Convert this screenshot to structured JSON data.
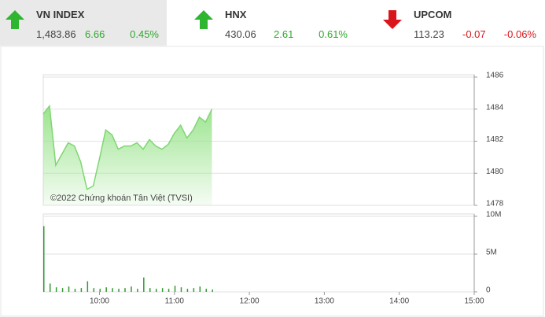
{
  "header": {
    "indices": [
      {
        "name": "VN INDEX",
        "value": "1,483.86",
        "change": "6.66",
        "percent": "0.45%",
        "trend": "up",
        "selected": true
      },
      {
        "name": "HNX",
        "value": "430.06",
        "change": "2.61",
        "percent": "0.61%",
        "trend": "up",
        "selected": false
      },
      {
        "name": "UPCOM",
        "value": "113.23",
        "change": "-0.07",
        "percent": "-0.06%",
        "trend": "down",
        "selected": false
      }
    ]
  },
  "chart_data": [
    {
      "type": "area",
      "annotation": "©2022 Chứng khoán Tân Việt (TVSI)",
      "color": "#7fd672",
      "x": [
        "09:15",
        "09:20",
        "09:25",
        "09:30",
        "09:35",
        "09:40",
        "09:45",
        "09:50",
        "09:55",
        "10:00",
        "10:05",
        "10:10",
        "10:15",
        "10:20",
        "10:25",
        "10:30",
        "10:35",
        "10:40",
        "10:45",
        "10:50",
        "10:55",
        "11:00",
        "11:05",
        "11:10",
        "11:15",
        "11:20",
        "11:25",
        "11:30"
      ],
      "values": [
        1483.7,
        1484.2,
        1480.5,
        1481.2,
        1481.9,
        1481.7,
        1480.7,
        1479.0,
        1479.2,
        1480.9,
        1482.7,
        1482.4,
        1481.5,
        1481.7,
        1481.7,
        1481.9,
        1481.5,
        1482.1,
        1481.7,
        1481.5,
        1481.8,
        1482.5,
        1483.0,
        1482.2,
        1482.7,
        1483.5,
        1483.2,
        1484.0
      ],
      "xlim": [
        "09:15",
        "15:00"
      ],
      "ylim": [
        1478,
        1486
      ],
      "yticks": [
        1478,
        1480,
        1482,
        1484,
        1486
      ],
      "grid": true
    },
    {
      "type": "bar",
      "color": "#2e9a2e",
      "x": [
        "09:15",
        "09:20",
        "09:25",
        "09:30",
        "09:35",
        "09:40",
        "09:45",
        "09:50",
        "09:55",
        "10:00",
        "10:05",
        "10:10",
        "10:15",
        "10:20",
        "10:25",
        "10:30",
        "10:35",
        "10:40",
        "10:45",
        "10:50",
        "10:55",
        "11:00",
        "11:05",
        "11:10",
        "11:15",
        "11:20",
        "11:25",
        "11:30"
      ],
      "values": [
        8700000,
        1100000,
        600000,
        500000,
        700000,
        400000,
        500000,
        1400000,
        500000,
        400000,
        600000,
        500000,
        400000,
        500000,
        700000,
        400000,
        1900000,
        500000,
        400000,
        500000,
        400000,
        800000,
        600000,
        400000,
        500000,
        700000,
        400000,
        300000
      ],
      "xlim": [
        "09:15",
        "15:00"
      ],
      "xticks": [
        "10:00",
        "11:00",
        "12:00",
        "13:00",
        "14:00",
        "15:00"
      ],
      "ylim": [
        0,
        10000000
      ],
      "yticks": [
        0,
        {
          "value": 5000000,
          "label": "5M"
        },
        {
          "value": 10000000,
          "label": "10M"
        }
      ],
      "grid": true
    }
  ]
}
